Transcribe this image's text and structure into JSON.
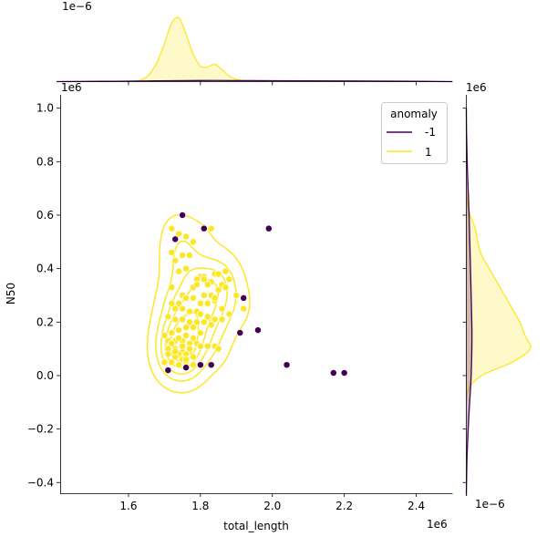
{
  "chart_data": {
    "type": "scatter",
    "xlabel": "total_length",
    "ylabel": "N50",
    "x_offset_label": "1e6",
    "y_offset_label": "1e6",
    "top_marginal_offset_label": "1e−6",
    "right_marginal_offset_label": "1e−6",
    "xlim": [
      1.41,
      2.5
    ],
    "ylim": [
      -0.44,
      1.05
    ],
    "xticks": [
      1.6,
      1.8,
      2.0,
      2.2,
      2.4
    ],
    "yticks": [
      -0.4,
      -0.2,
      0.0,
      0.2,
      0.4,
      0.6,
      0.8,
      1.0
    ],
    "xtick_labels": [
      "1.6",
      "1.8",
      "2.0",
      "2.2",
      "2.4"
    ],
    "ytick_labels": [
      "−0.4",
      "−0.2",
      "0.0",
      "0.2",
      "0.4",
      "0.6",
      "0.8",
      "1.0"
    ],
    "legend": {
      "title": "anomaly",
      "position": "top-right",
      "entries": [
        {
          "label": "-1",
          "color": "#440154"
        },
        {
          "label": "1",
          "color": "#fde725"
        }
      ]
    },
    "series": [
      {
        "name": "1",
        "color": "#fde725",
        "x": [
          1.72,
          1.74,
          1.72,
          1.76,
          1.78,
          1.75,
          1.73,
          1.77,
          1.76,
          1.74,
          1.72,
          1.75,
          1.78,
          1.8,
          1.79,
          1.81,
          1.84,
          1.85,
          1.87,
          1.83,
          1.82,
          1.86,
          1.88,
          1.81,
          1.83,
          1.85,
          1.87,
          1.9,
          1.92,
          1.8,
          1.82,
          1.84,
          1.86,
          1.76,
          1.78,
          1.74,
          1.72,
          1.73,
          1.75,
          1.77,
          1.79,
          1.71,
          1.73,
          1.75,
          1.77,
          1.79,
          1.81,
          1.83,
          1.76,
          1.78,
          1.74,
          1.72,
          1.7,
          1.71,
          1.73,
          1.75,
          1.77,
          1.79,
          1.8,
          1.82,
          1.84,
          1.71,
          1.73,
          1.75,
          1.77,
          1.74,
          1.76,
          1.78,
          1.73,
          1.75,
          1.72,
          1.7,
          1.74,
          1.76,
          1.78,
          1.8,
          1.82,
          1.84,
          1.86,
          1.88,
          1.76,
          1.78,
          1.8,
          1.74,
          1.72,
          1.75,
          1.77,
          1.73,
          1.71,
          1.76,
          1.83,
          1.85,
          1.79,
          1.81,
          1.84
        ],
        "y": [
          0.55,
          0.53,
          0.46,
          0.52,
          0.5,
          0.45,
          0.43,
          0.45,
          0.4,
          0.39,
          0.33,
          0.3,
          0.33,
          0.37,
          0.36,
          0.37,
          0.38,
          0.38,
          0.39,
          0.35,
          0.34,
          0.34,
          0.36,
          0.3,
          0.3,
          0.32,
          0.33,
          0.3,
          0.25,
          0.27,
          0.27,
          0.28,
          0.25,
          0.29,
          0.29,
          0.27,
          0.27,
          0.25,
          0.25,
          0.24,
          0.24,
          0.22,
          0.21,
          0.21,
          0.2,
          0.2,
          0.2,
          0.19,
          0.18,
          0.18,
          0.17,
          0.16,
          0.15,
          0.13,
          0.13,
          0.13,
          0.12,
          0.12,
          0.11,
          0.11,
          0.11,
          0.1,
          0.1,
          0.09,
          0.09,
          0.08,
          0.08,
          0.07,
          0.07,
          0.06,
          0.05,
          0.05,
          0.04,
          0.05,
          0.04,
          0.23,
          0.22,
          0.21,
          0.21,
          0.23,
          0.15,
          0.14,
          0.16,
          0.14,
          0.12,
          0.11,
          0.1,
          0.09,
          0.08,
          0.06,
          0.55,
          0.1,
          0.34,
          0.36,
          0.29
        ]
      },
      {
        "name": "-1",
        "color": "#440154",
        "x": [
          1.75,
          1.81,
          1.73,
          1.99,
          1.71,
          1.76,
          1.8,
          1.83,
          1.91,
          1.92,
          1.96,
          2.04,
          2.17,
          2.2
        ],
        "y": [
          0.6,
          0.55,
          0.51,
          0.55,
          0.02,
          0.03,
          0.04,
          0.04,
          0.16,
          0.29,
          0.17,
          0.04,
          0.01,
          0.01
        ]
      }
    ],
    "kde_contours_series": "1",
    "kde_contour_levels": 5,
    "marginal_x": {
      "series": [
        {
          "name": "1",
          "color": "#fde725",
          "x": [
            1.6,
            1.62,
            1.64,
            1.66,
            1.68,
            1.7,
            1.72,
            1.74,
            1.76,
            1.78,
            1.8,
            1.82,
            1.84,
            1.86,
            1.88,
            1.9,
            1.92,
            1.94,
            1.96,
            1.98
          ],
          "density": [
            0.0,
            0.05,
            0.25,
            0.9,
            2.2,
            4.2,
            6.4,
            7.0,
            5.2,
            3.0,
            1.7,
            1.6,
            1.9,
            1.3,
            0.6,
            0.25,
            0.1,
            0.04,
            0.01,
            0.0
          ]
        },
        {
          "name": "-1",
          "color": "#440154",
          "x": [
            1.4,
            1.6,
            1.8,
            2.0,
            2.2,
            2.4,
            2.5
          ],
          "density": [
            0.0,
            0.05,
            0.12,
            0.1,
            0.07,
            0.03,
            0.0
          ]
        }
      ]
    },
    "marginal_y": {
      "series": [
        {
          "name": "1",
          "color": "#fde725",
          "y": [
            -0.1,
            -0.05,
            0.0,
            0.05,
            0.1,
            0.15,
            0.2,
            0.25,
            0.3,
            0.35,
            0.4,
            0.45,
            0.5,
            0.55,
            0.6,
            0.65,
            0.7
          ],
          "density": [
            0.0,
            0.1,
            0.6,
            1.8,
            2.5,
            2.3,
            2.1,
            1.8,
            1.5,
            1.2,
            0.9,
            0.6,
            0.45,
            0.35,
            0.15,
            0.04,
            0.0
          ]
        },
        {
          "name": "-1",
          "color": "#440154",
          "y": [
            -0.45,
            -0.3,
            -0.15,
            0.0,
            0.15,
            0.3,
            0.45,
            0.6,
            0.75,
            0.9,
            1.0
          ],
          "density": [
            0.0,
            0.03,
            0.1,
            0.19,
            0.22,
            0.19,
            0.15,
            0.11,
            0.05,
            0.01,
            0.0
          ]
        }
      ]
    }
  }
}
